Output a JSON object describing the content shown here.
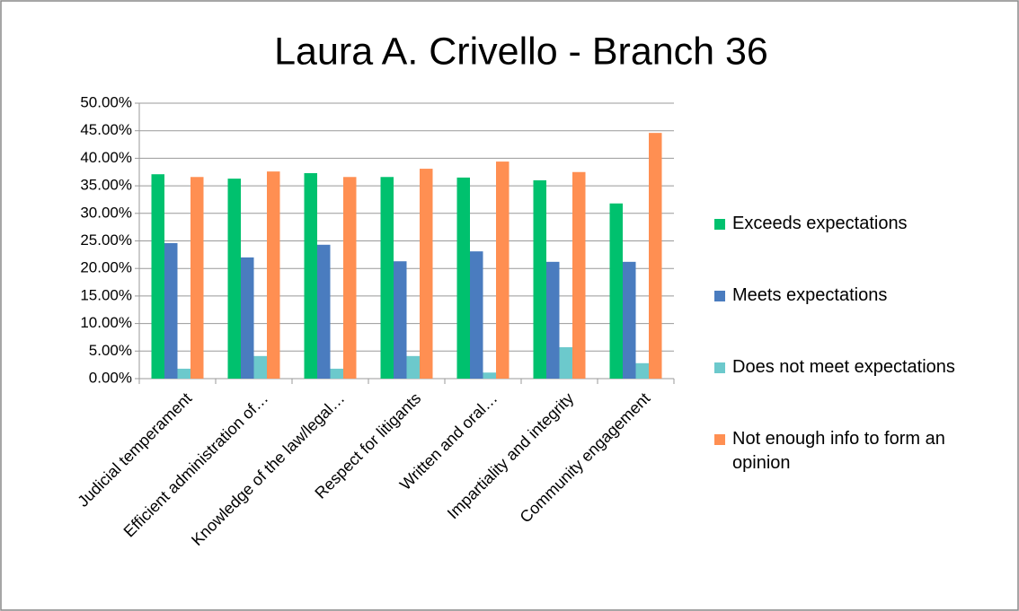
{
  "chart_data": {
    "type": "bar",
    "title": "Laura A. Crivello - Branch 36",
    "categories": [
      "Judicial temperament",
      "Efficient administration of…",
      "Knowledge of the law/legal…",
      "Respect for litigants",
      "Written and oral…",
      "Impartiality and integrity",
      "Community engagement"
    ],
    "series": [
      {
        "name": "Exceeds expectations",
        "color": "#00c16e",
        "values": [
          37.1,
          36.3,
          37.3,
          36.6,
          36.5,
          36.0,
          31.8
        ]
      },
      {
        "name": "Meets expectations",
        "color": "#4a7cbf",
        "values": [
          24.6,
          22.0,
          24.3,
          21.3,
          23.1,
          21.2,
          21.2
        ]
      },
      {
        "name": "Does not meet expectations",
        "color": "#6cc9cc",
        "values": [
          1.8,
          4.1,
          1.8,
          4.1,
          1.1,
          5.7,
          2.8
        ]
      },
      {
        "name": "Not enough info to form an opinion",
        "color": "#ff8f52",
        "values": [
          36.6,
          37.6,
          36.6,
          38.1,
          39.4,
          37.5,
          44.6
        ]
      }
    ],
    "ylim": [
      0,
      50
    ],
    "yticks": [
      {
        "value": 0,
        "label": "0.00%"
      },
      {
        "value": 5,
        "label": "5.00%"
      },
      {
        "value": 10,
        "label": "10.00%"
      },
      {
        "value": 15,
        "label": "15.00%"
      },
      {
        "value": 20,
        "label": "20.00%"
      },
      {
        "value": 25,
        "label": "25.00%"
      },
      {
        "value": 30,
        "label": "30.00%"
      },
      {
        "value": 35,
        "label": "35.00%"
      },
      {
        "value": 40,
        "label": "40.00%"
      },
      {
        "value": 45,
        "label": "45.00%"
      },
      {
        "value": 50,
        "label": "50.00%"
      }
    ],
    "grid": true,
    "legend": "right"
  }
}
